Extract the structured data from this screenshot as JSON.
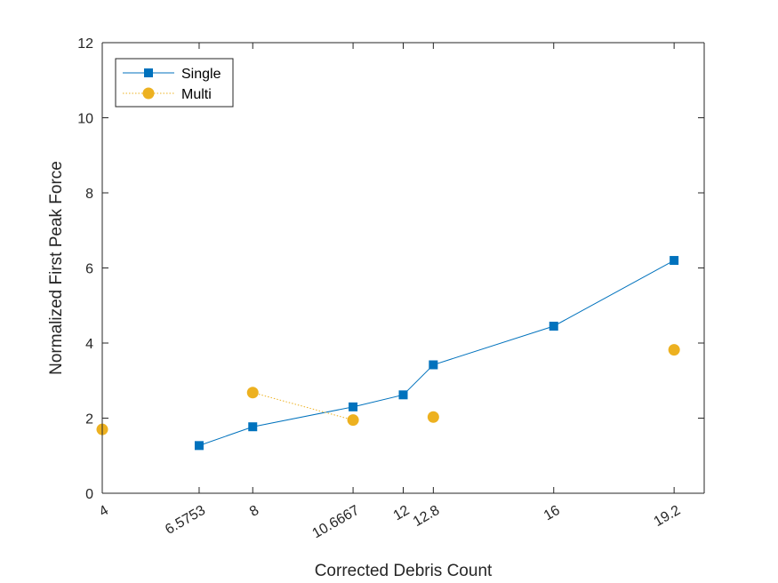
{
  "chart_data": {
    "type": "line",
    "title": "",
    "xlabel": "Corrected Debris Count",
    "ylabel": "Normalized First Peak Force",
    "xlim": [
      4,
      20
    ],
    "ylim": [
      0,
      12
    ],
    "xticks": [
      4,
      6.5753,
      8,
      10.6667,
      12,
      12.8,
      16,
      19.2
    ],
    "xtick_labels": [
      "4",
      "6.5753",
      "8",
      "10.6667",
      "12",
      "12.8",
      "16",
      "19.2"
    ],
    "yticks": [
      0,
      2,
      4,
      6,
      8,
      10,
      12
    ],
    "ytick_labels": [
      "0",
      "2",
      "4",
      "6",
      "8",
      "10",
      "12"
    ],
    "legend_position": "top-left",
    "grid": false,
    "series": [
      {
        "name": "Single",
        "color": "#0072BD",
        "marker": "square",
        "line_style": "solid",
        "x": [
          6.5753,
          8,
          10.6667,
          12,
          12.8,
          16,
          19.2
        ],
        "y": [
          1.27,
          1.77,
          2.3,
          2.62,
          3.42,
          4.45,
          6.2
        ]
      },
      {
        "name": "Multi",
        "color": "#EDB120",
        "marker": "circle",
        "line_style": "dotted",
        "x": [
          4,
          8,
          10.6667,
          12.8,
          19.2
        ],
        "y": [
          1.7,
          2.68,
          1.95,
          2.03,
          3.82
        ],
        "connected_segments": [
          [
            1,
            2
          ]
        ]
      }
    ]
  }
}
